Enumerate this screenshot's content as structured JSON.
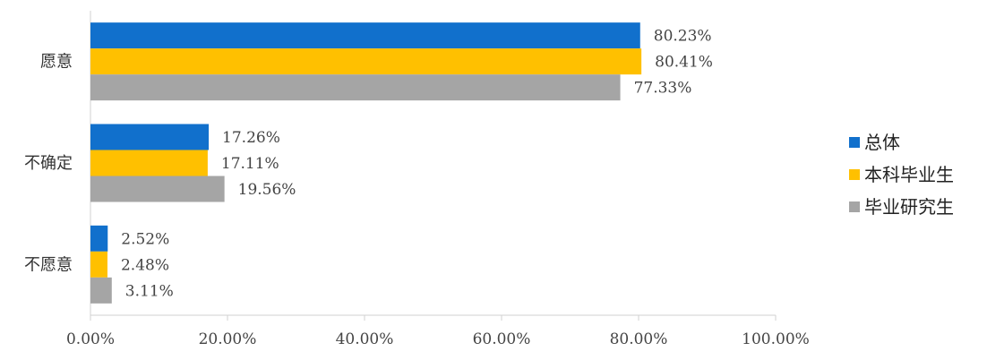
{
  "chart_data": {
    "type": "bar",
    "orientation": "horizontal",
    "categories": [
      "愿意",
      "不确定",
      "不愿意"
    ],
    "series": [
      {
        "name": "总体",
        "color": "#1170CC",
        "values": [
          80.23,
          17.26,
          2.52
        ],
        "labels": [
          "80.23%",
          "17.26%",
          "2.52%"
        ]
      },
      {
        "name": "本科毕业生",
        "color": "#FFC000",
        "values": [
          80.41,
          17.11,
          2.48
        ],
        "labels": [
          "80.41%",
          "17.11%",
          "2.48%"
        ]
      },
      {
        "name": "毕业研究生",
        "color": "#A5A5A5",
        "values": [
          77.33,
          19.56,
          3.11
        ],
        "labels": [
          "77.33%",
          "19.56%",
          "3.11%"
        ]
      }
    ],
    "xlim": [
      0,
      100
    ],
    "xticks": [
      0,
      20,
      40,
      60,
      80,
      100
    ],
    "xtick_labels": [
      "0.00%",
      "20.00%",
      "40.00%",
      "60.00%",
      "80.00%",
      "100.00%"
    ],
    "grid": false,
    "legend_position": "right"
  }
}
